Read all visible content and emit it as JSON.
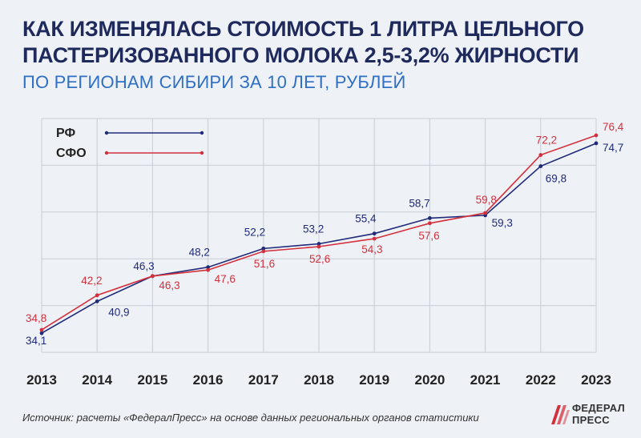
{
  "header": {
    "title": "КАК ИЗМЕНЯЛАСЬ СТОИМОСТЬ 1 ЛИТРА ЦЕЛЬНОГО ПАСТЕРИЗОВАННОГО МОЛОКА 2,5-3,2% ЖИРНОСТИ",
    "subtitle": "ПО РЕГИОНАМ СИБИРИ ЗА 10 ЛЕТ, РУБЛЕЙ"
  },
  "footer": {
    "source": "Источник: расчеты «ФедералПресс» на основе данных региональных органов статистики",
    "logo_line1": "ФЕДЕРАЛ",
    "logo_line2": "ПРЕСС"
  },
  "colors": {
    "rf": "#1f2a7a",
    "sfo": "#d4303c",
    "grid": "#c9ced6"
  },
  "chart_data": {
    "type": "line",
    "title": "КАК ИЗМЕНЯЛАСЬ СТОИМОСТЬ 1 ЛИТРА ЦЕЛЬНОГО ПАСТЕРИЗОВАННОГО МОЛОКА 2,5-3,2% ЖИРНОСТИ",
    "subtitle": "ПО РЕГИОНАМ СИБИРИ ЗА 10 ЛЕТ, РУБЛЕЙ",
    "xlabel": "",
    "ylabel": "",
    "categories": [
      "2013",
      "2014",
      "2015",
      "2016",
      "2017",
      "2018",
      "2019",
      "2020",
      "2021",
      "2022",
      "2023"
    ],
    "ylim": [
      30,
      80
    ],
    "grid": true,
    "legend_position": "top-left",
    "series": [
      {
        "name": "РФ",
        "color": "#1f2a7a",
        "values": [
          34.1,
          40.9,
          46.3,
          48.2,
          52.2,
          53.2,
          55.4,
          58.7,
          59.3,
          69.8,
          74.7
        ],
        "labels": [
          "34,1",
          "40,9",
          "46,3",
          "48,2",
          "52,2",
          "53,2",
          "55,4",
          "58,7",
          "59,3",
          "69,8",
          "74,7"
        ]
      },
      {
        "name": "СФО",
        "color": "#d4303c",
        "values": [
          34.8,
          42.2,
          46.3,
          47.6,
          51.6,
          52.6,
          54.3,
          57.6,
          59.8,
          72.2,
          76.4
        ],
        "labels": [
          "34,8",
          "42,2",
          "46,3",
          "47,6",
          "51,6",
          "52,6",
          "54,3",
          "57,6",
          "59,8",
          "72,2",
          "76,4"
        ]
      }
    ]
  }
}
